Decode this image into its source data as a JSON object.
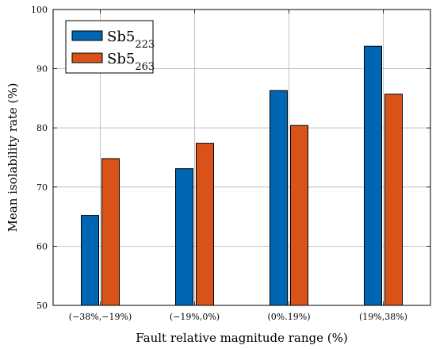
{
  "chart_data": {
    "type": "bar",
    "title": "",
    "xlabel": "Fault relative magnitude range (%)",
    "ylabel": "Mean isolability rate (%)",
    "categories": [
      "(−38%,−19%)",
      "(−19%,0%)",
      "(0%.19%)",
      "(19%,38%)"
    ],
    "series": [
      {
        "name": "Sb5",
        "subscript": "223",
        "color": "#0066b3",
        "values": [
          65.2,
          73.1,
          86.3,
          93.8
        ]
      },
      {
        "name": "Sb5",
        "subscript": "263",
        "color": "#d95319",
        "values": [
          74.8,
          77.4,
          80.4,
          85.7
        ]
      }
    ],
    "ylim": [
      50,
      100
    ],
    "yticks": [
      50,
      60,
      70,
      80,
      90,
      100
    ],
    "grid": true,
    "legend_position": "top-left"
  }
}
